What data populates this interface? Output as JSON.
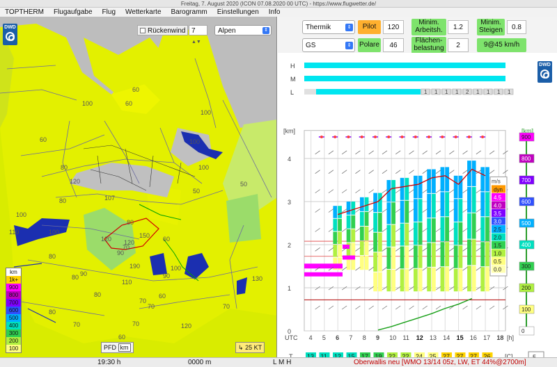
{
  "window_title": "Freitag, 7. August 2020 (ICON 07.08.2020 00 UTC) - https://www.flugwetter.de/",
  "menu": [
    "TOPTHERM",
    "Flugaufgabe",
    "Flug",
    "Wetterkarte",
    "Barogramm",
    "Einstellungen",
    "Info"
  ],
  "logo_text": "DWD",
  "map": {
    "tailwind_label": "Rückenwind",
    "tailwind_checked": false,
    "spinner_value": "7",
    "region": "Alpen",
    "contour_labels": [
      "100",
      "60",
      "80",
      "80",
      "100",
      "120",
      "100",
      "100",
      "60",
      "60",
      "100",
      "80",
      "90",
      "110",
      "120",
      "90",
      "120",
      "150",
      "80",
      "70",
      "60",
      "60",
      "80",
      "50",
      "50",
      "190",
      "110",
      "100",
      "80",
      "60",
      "120",
      "130",
      "70",
      "70",
      "90",
      "80",
      "70",
      "70",
      "70",
      "100",
      "107"
    ],
    "legend_unit": "km",
    "legend": [
      {
        "label": "1k+",
        "color": "#ffd400"
      },
      {
        "label": "900",
        "color": "#ff00ff"
      },
      {
        "label": "800",
        "color": "#c000c0"
      },
      {
        "label": "700",
        "color": "#8000ff"
      },
      {
        "label": "600",
        "color": "#3050ff"
      },
      {
        "label": "500",
        "color": "#00b0ff"
      },
      {
        "label": "400",
        "color": "#00e0c0"
      },
      {
        "label": "300",
        "color": "#30d050"
      },
      {
        "label": "200",
        "color": "#b0f040"
      },
      {
        "label": "100",
        "color": "#ffff80"
      }
    ],
    "pfd_label": "PFD",
    "km_label": "km",
    "wind_scale": "25 KT"
  },
  "controls": {
    "mode": "Thermik",
    "pilot_label": "Pilot",
    "pilot_value": "120",
    "min_work_label": "Minim. Arbeitsh.",
    "min_work_value": "1.2",
    "min_climb_label": "Minim. Steigen",
    "min_climb_value": "0.8",
    "glider": "GS",
    "polar_label": "Polare",
    "polar_value": "46",
    "wing_load_label": "Flächen-belastung",
    "wing_load_value": "2",
    "result": "9@45 km/h"
  },
  "chart_data": {
    "type": "bar",
    "title": "",
    "xlabel": "UTC",
    "x_unit": "[h]",
    "categories": [
      "4",
      "5",
      "6",
      "7",
      "8",
      "9",
      "10",
      "11",
      "12",
      "13",
      "14",
      "15",
      "16",
      "17",
      "18"
    ],
    "y_left_label": "[km]",
    "y_left_ticks": [
      "0",
      "1",
      "2",
      "3",
      "4"
    ],
    "y_right_label": "[km]",
    "y_right_ticks": [
      {
        "label": "900",
        "color": "#ff00ff"
      },
      {
        "label": "800",
        "color": "#c000c0"
      },
      {
        "label": "700",
        "color": "#8000ff"
      },
      {
        "label": "600",
        "color": "#3050ff"
      },
      {
        "label": "500",
        "color": "#00b0ff"
      },
      {
        "label": "400",
        "color": "#00e0c0"
      },
      {
        "label": "300",
        "color": "#30d050"
      },
      {
        "label": "200",
        "color": "#b0f040"
      },
      {
        "label": "100",
        "color": "#ffff80"
      },
      {
        "label": "0",
        "color": "#ffffff"
      }
    ],
    "cloud_rows": [
      "H",
      "M",
      "L"
    ],
    "low_cloud_values": [
      "1",
      "1",
      "1",
      "1",
      "2",
      "1",
      "1",
      "1",
      "1"
    ],
    "climb_scale_unit": "m/s",
    "climb_scale": [
      {
        "label": "dyn",
        "color": "#ff9900"
      },
      {
        "label": "4.5",
        "color": "#ff00ff"
      },
      {
        "label": "4.0",
        "color": "#c000c0"
      },
      {
        "label": "3.5",
        "color": "#8000ff"
      },
      {
        "label": "3.0",
        "color": "#3050ff"
      },
      {
        "label": "2.5",
        "color": "#00b0ff"
      },
      {
        "label": "2.0",
        "color": "#00e0c0"
      },
      {
        "label": "1.5",
        "color": "#30d050"
      },
      {
        "label": "1.0",
        "color": "#b0f040"
      },
      {
        "label": "0.5",
        "color": "#ffff80"
      },
      {
        "label": "0.0",
        "color": "#ffffb0"
      }
    ],
    "thermal_top_km": [
      2.9,
      3.0,
      3.1,
      3.2,
      3.5,
      3.55,
      3.6,
      3.75,
      3.8,
      3.6,
      3.95,
      3.8
    ],
    "convergence_km": [
      0.02,
      0.1,
      0.2,
      0.3,
      0.4,
      0.52,
      0.62,
      0.75
    ],
    "temperature_label": "T",
    "dewpoint_label": "Td",
    "T": [
      "13",
      "11",
      "12",
      "15",
      "17",
      "19",
      "22",
      "22",
      "24",
      "25",
      "27",
      "27",
      "27",
      "26"
    ],
    "Td": [
      "8",
      "8",
      "8",
      "8",
      "8",
      "8",
      "8",
      "8",
      "8",
      "8",
      "8",
      "8",
      "7",
      "7"
    ],
    "unit_c": "[C]",
    "offset_value": "-5"
  },
  "status": {
    "time": "19:30 h",
    "altitude": "0000 m",
    "lmh": "L M H",
    "location": "Oberwallis neu [WMO 13/14 05z, LW, ET  44%@2700m]"
  }
}
